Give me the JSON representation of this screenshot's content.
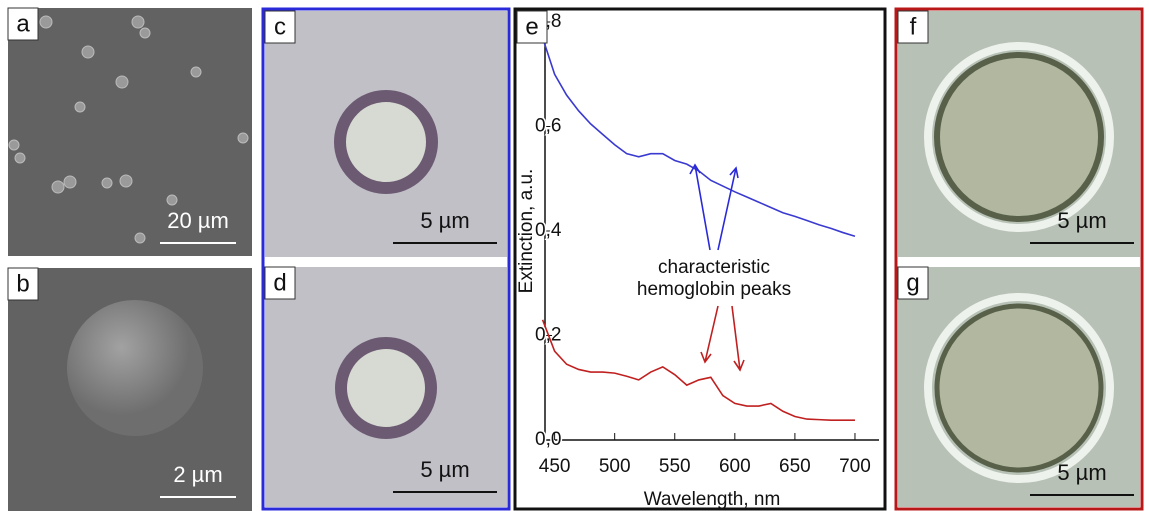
{
  "panels": [
    {
      "label": "a",
      "scale_bar": "20 µm"
    },
    {
      "label": "b",
      "scale_bar": "2 µm"
    },
    {
      "label": "c",
      "scale_bar": "5 µm"
    },
    {
      "label": "d",
      "scale_bar": "5 µm"
    },
    {
      "label": "e"
    },
    {
      "label": "f",
      "scale_bar": "5 µm"
    },
    {
      "label": "g",
      "scale_bar": "5 µm"
    }
  ],
  "chart_data": {
    "type": "line",
    "x_label": "Wavelength, nm",
    "y_label": "Extinction, a.u.",
    "annotation": [
      "characteristic",
      "hemoglobin peaks"
    ],
    "x": [
      440,
      450,
      460,
      470,
      480,
      490,
      500,
      510,
      520,
      530,
      540,
      550,
      560,
      570,
      580,
      590,
      600,
      610,
      620,
      630,
      640,
      650,
      660,
      670,
      680,
      690,
      700
    ],
    "series": [
      {
        "color": "#3a3ad0",
        "values": [
          0.77,
          0.7,
          0.66,
          0.63,
          0.605,
          0.585,
          0.565,
          0.548,
          0.542,
          0.548,
          0.548,
          0.535,
          0.528,
          0.515,
          0.497,
          0.486,
          0.475,
          0.465,
          0.455,
          0.445,
          0.435,
          0.428,
          0.42,
          0.412,
          0.405,
          0.397,
          0.39
        ]
      },
      {
        "color": "#c02020",
        "values": [
          0.23,
          0.17,
          0.145,
          0.135,
          0.13,
          0.13,
          0.128,
          0.122,
          0.115,
          0.13,
          0.14,
          0.125,
          0.105,
          0.115,
          0.12,
          0.085,
          0.07,
          0.065,
          0.065,
          0.07,
          0.055,
          0.045,
          0.04,
          0.039,
          0.038,
          0.038,
          0.038
        ]
      }
    ],
    "xlim": [
      442,
      720
    ],
    "xticks": [
      450,
      500,
      550,
      600,
      650,
      700
    ],
    "ylim": [
      0,
      0.8
    ],
    "yticks": [
      {
        "value": 0,
        "label": "0,0"
      },
      {
        "value": 0.2,
        "label": "0,2"
      },
      {
        "value": 0.4,
        "label": "0,4"
      },
      {
        "value": 0.6,
        "label": "0,6"
      },
      {
        "value": 0.8,
        "label": "0,8"
      }
    ]
  }
}
